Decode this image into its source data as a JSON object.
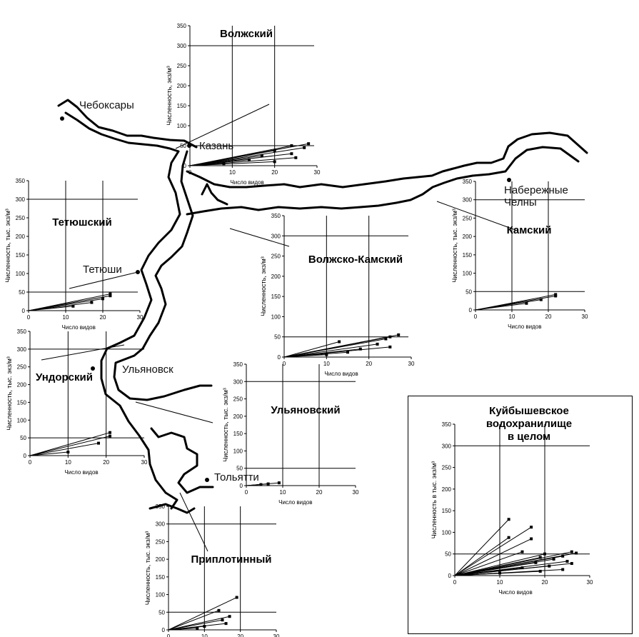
{
  "places": {
    "cheboksary": "Чебоксары",
    "kazan": "Казань",
    "naberezhnye": "Набережные",
    "chelny": "Челны",
    "tetyushi": "Тетюши",
    "ulyanovsk": "Ульяновск",
    "tolyatti": "Тольятти"
  },
  "colors": {
    "line": "#000000",
    "background": "#ffffff"
  },
  "chart_data": [
    {
      "id": "volzhsky",
      "type": "scatter",
      "title": "Волжский",
      "xlabel": "Число видов",
      "ylabel": "Численность, экз/м³",
      "xlim": [
        0,
        30
      ],
      "ylim": [
        0,
        350
      ],
      "xticks": [
        "0",
        "10",
        "20",
        "30"
      ],
      "yticks": [
        "0",
        "50",
        "100",
        "150",
        "200",
        "250",
        "300",
        "350"
      ],
      "ref_y": [
        300,
        50
      ],
      "ref_x": [
        10,
        20
      ],
      "series": [
        {
          "x": [
            0,
            28
          ],
          "y": [
            0,
            55
          ]
        },
        {
          "x": [
            0,
            24
          ],
          "y": [
            0,
            50
          ]
        },
        {
          "x": [
            0,
            27
          ],
          "y": [
            0,
            45
          ]
        },
        {
          "x": [
            0,
            20
          ],
          "y": [
            0,
            38
          ]
        },
        {
          "x": [
            0,
            24
          ],
          "y": [
            0,
            30
          ]
        },
        {
          "x": [
            0,
            17
          ],
          "y": [
            0,
            25
          ]
        },
        {
          "x": [
            0,
            25
          ],
          "y": [
            0,
            20
          ]
        },
        {
          "x": [
            0,
            14
          ],
          "y": [
            0,
            15
          ]
        },
        {
          "x": [
            0,
            20
          ],
          "y": [
            0,
            10
          ]
        },
        {
          "x": [
            0,
            8
          ],
          "y": [
            0,
            5
          ]
        }
      ]
    },
    {
      "id": "tetyushsky",
      "type": "scatter",
      "title": "Тетюшский",
      "xlabel": "Число видов",
      "ylabel": "Численность, тыс. экз/м³",
      "xlim": [
        0,
        30
      ],
      "ylim": [
        0,
        350
      ],
      "xticks": [
        "0",
        "10",
        "20",
        "30"
      ],
      "yticks": [
        "0",
        "50",
        "100",
        "150",
        "200",
        "250",
        "300",
        "350"
      ],
      "ref_y": [
        300,
        50
      ],
      "ref_x": [
        10,
        20
      ],
      "series": [
        {
          "x": [
            0,
            22
          ],
          "y": [
            0,
            45
          ]
        },
        {
          "x": [
            0,
            22
          ],
          "y": [
            0,
            40
          ]
        },
        {
          "x": [
            0,
            20
          ],
          "y": [
            0,
            32
          ]
        },
        {
          "x": [
            0,
            17
          ],
          "y": [
            0,
            22
          ]
        },
        {
          "x": [
            0,
            12
          ],
          "y": [
            0,
            12
          ]
        }
      ]
    },
    {
      "id": "undorsky",
      "type": "scatter",
      "title": "Ундорский",
      "xlabel": "Число видов",
      "ylabel": "Численность, тыс. экз/м³",
      "xlim": [
        0,
        30
      ],
      "ylim": [
        0,
        350
      ],
      "xticks": [
        "0",
        "10",
        "20",
        "30"
      ],
      "yticks": [
        "0",
        "50",
        "100",
        "150",
        "200",
        "250",
        "300",
        "350"
      ],
      "ref_y": [
        300,
        50
      ],
      "ref_x": [
        10,
        20
      ],
      "series": [
        {
          "x": [
            0,
            21
          ],
          "y": [
            0,
            65
          ]
        },
        {
          "x": [
            0,
            21
          ],
          "y": [
            0,
            55
          ]
        },
        {
          "x": [
            0,
            18
          ],
          "y": [
            0,
            35
          ]
        },
        {
          "x": [
            0,
            10
          ],
          "y": [
            0,
            10
          ]
        }
      ]
    },
    {
      "id": "volzhsko_kamsky",
      "type": "scatter",
      "title": "Волжско-Камский",
      "xlabel": "Число видов",
      "ylabel": "Численность, экз/м³",
      "xlim": [
        0,
        30
      ],
      "ylim": [
        0,
        350
      ],
      "xticks": [
        "0",
        "10",
        "20",
        "30"
      ],
      "yticks": [
        "0",
        "50",
        "100",
        "150",
        "200",
        "250",
        "300",
        "350"
      ],
      "ref_y": [
        300,
        50
      ],
      "ref_x": [
        10,
        20
      ],
      "series": [
        {
          "x": [
            0,
            27
          ],
          "y": [
            0,
            55
          ]
        },
        {
          "x": [
            0,
            25
          ],
          "y": [
            0,
            50
          ]
        },
        {
          "x": [
            0,
            24
          ],
          "y": [
            0,
            45
          ]
        },
        {
          "x": [
            0,
            13
          ],
          "y": [
            0,
            38
          ]
        },
        {
          "x": [
            0,
            22
          ],
          "y": [
            0,
            32
          ]
        },
        {
          "x": [
            0,
            25
          ],
          "y": [
            0,
            25
          ]
        },
        {
          "x": [
            0,
            18
          ],
          "y": [
            0,
            20
          ]
        },
        {
          "x": [
            0,
            15
          ],
          "y": [
            0,
            12
          ]
        },
        {
          "x": [
            0,
            10
          ],
          "y": [
            0,
            6
          ]
        }
      ]
    },
    {
      "id": "kamsky",
      "type": "scatter",
      "title": "Камский",
      "xlabel": "Число видов",
      "ylabel": "Численность, тыс. экз/м³",
      "xlim": [
        0,
        30
      ],
      "ylim": [
        0,
        350
      ],
      "xticks": [
        "0",
        "10",
        "20",
        "30"
      ],
      "yticks": [
        "0",
        "50",
        "100",
        "150",
        "200",
        "250",
        "300",
        "350"
      ],
      "ref_y": [
        300,
        50
      ],
      "ref_x": [
        10,
        20
      ],
      "series": [
        {
          "x": [
            0,
            22
          ],
          "y": [
            0,
            42
          ]
        },
        {
          "x": [
            0,
            22
          ],
          "y": [
            0,
            38
          ]
        },
        {
          "x": [
            0,
            18
          ],
          "y": [
            0,
            28
          ]
        },
        {
          "x": [
            0,
            14
          ],
          "y": [
            0,
            18
          ]
        }
      ]
    },
    {
      "id": "ulyanovsky",
      "type": "scatter",
      "title": "Ульяновский",
      "xlabel": "Число видов",
      "ylabel": "Численность, тыс. экз/м³",
      "xlim": [
        0,
        30
      ],
      "ylim": [
        0,
        350
      ],
      "xticks": [
        "0",
        "10",
        "20",
        "30"
      ],
      "yticks": [
        "0",
        "50",
        "100",
        "150",
        "200",
        "250",
        "300",
        "350"
      ],
      "ref_y": [
        300,
        50
      ],
      "ref_x": [
        10,
        20
      ],
      "series": [
        {
          "x": [
            0,
            9
          ],
          "y": [
            0,
            8
          ]
        },
        {
          "x": [
            0,
            6
          ],
          "y": [
            0,
            5
          ]
        },
        {
          "x": [
            0,
            4
          ],
          "y": [
            0,
            3
          ]
        }
      ]
    },
    {
      "id": "priplotinny",
      "type": "scatter",
      "title": "Приплотинный",
      "xlabel": "Число видов",
      "ylabel": "Численность, тыс. экз/м³",
      "xlim": [
        0,
        30
      ],
      "ylim": [
        0,
        350
      ],
      "xticks": [
        "0",
        "10",
        "20",
        "30"
      ],
      "yticks": [
        "0",
        "50",
        "100",
        "150",
        "200",
        "250",
        "300",
        "350"
      ],
      "ref_y": [
        300,
        50
      ],
      "ref_x": [
        10,
        20
      ],
      "series": [
        {
          "x": [
            0,
            19
          ],
          "y": [
            0,
            92
          ]
        },
        {
          "x": [
            0,
            14
          ],
          "y": [
            0,
            55
          ]
        },
        {
          "x": [
            0,
            17
          ],
          "y": [
            0,
            38
          ]
        },
        {
          "x": [
            0,
            15
          ],
          "y": [
            0,
            28
          ]
        },
        {
          "x": [
            0,
            16
          ],
          "y": [
            0,
            18
          ]
        },
        {
          "x": [
            0,
            10
          ],
          "y": [
            0,
            10
          ]
        },
        {
          "x": [
            0,
            8
          ],
          "y": [
            0,
            5
          ]
        }
      ]
    },
    {
      "id": "kuibyshev_total",
      "type": "scatter",
      "title": "Куйбышевское водохранилище в целом",
      "title_lines": [
        "Куйбышевское",
        "водохранилище",
        "в целом"
      ],
      "xlabel": "Число видов",
      "ylabel": "Численность в тыс. экз/м³",
      "xlim": [
        0,
        30
      ],
      "ylim": [
        0,
        350
      ],
      "xticks": [
        "0",
        "10",
        "20",
        "30"
      ],
      "yticks": [
        "0",
        "50",
        "100",
        "150",
        "200",
        "250",
        "300",
        "350"
      ],
      "ref_y": [
        300,
        50
      ],
      "ref_x": [
        10,
        20
      ],
      "series": [
        {
          "x": [
            0,
            12
          ],
          "y": [
            0,
            130
          ]
        },
        {
          "x": [
            0,
            17
          ],
          "y": [
            0,
            112
          ]
        },
        {
          "x": [
            0,
            12
          ],
          "y": [
            0,
            88
          ]
        },
        {
          "x": [
            0,
            17
          ],
          "y": [
            0,
            85
          ]
        },
        {
          "x": [
            0,
            15
          ],
          "y": [
            0,
            55
          ]
        },
        {
          "x": [
            0,
            26
          ],
          "y": [
            0,
            55
          ]
        },
        {
          "x": [
            0,
            27
          ],
          "y": [
            0,
            52
          ]
        },
        {
          "x": [
            0,
            20
          ],
          "y": [
            0,
            50
          ]
        },
        {
          "x": [
            0,
            24
          ],
          "y": [
            0,
            45
          ]
        },
        {
          "x": [
            0,
            19
          ],
          "y": [
            0,
            42
          ]
        },
        {
          "x": [
            0,
            22
          ],
          "y": [
            0,
            38
          ]
        },
        {
          "x": [
            0,
            25
          ],
          "y": [
            0,
            33
          ]
        },
        {
          "x": [
            0,
            18
          ],
          "y": [
            0,
            30
          ]
        },
        {
          "x": [
            0,
            26
          ],
          "y": [
            0,
            28
          ]
        },
        {
          "x": [
            0,
            21
          ],
          "y": [
            0,
            22
          ]
        },
        {
          "x": [
            0,
            15
          ],
          "y": [
            0,
            18
          ]
        },
        {
          "x": [
            0,
            24
          ],
          "y": [
            0,
            14
          ]
        },
        {
          "x": [
            0,
            19
          ],
          "y": [
            0,
            10
          ]
        },
        {
          "x": [
            0,
            10
          ],
          "y": [
            0,
            6
          ]
        }
      ]
    }
  ]
}
